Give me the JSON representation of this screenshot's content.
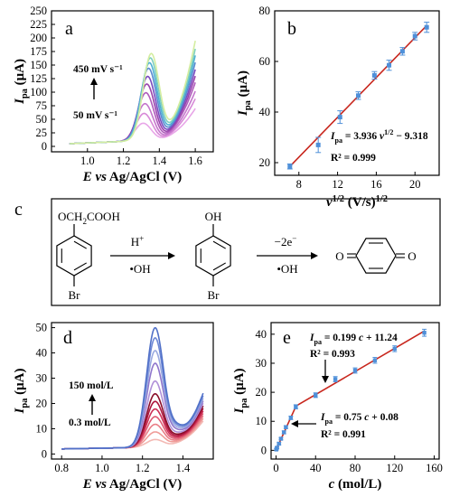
{
  "chart_data": [
    {
      "panel": "a",
      "type": "line",
      "xlabel": "E vs Ag/AgCl (V)",
      "ylabel": "Ipa (μA)",
      "xlim": [
        0.8,
        1.7
      ],
      "ylim": [
        -10,
        250
      ],
      "xticks": [
        "1.0",
        "1.2",
        "1.4",
        "1.6"
      ],
      "yticks": [
        "0",
        "25",
        "50",
        "75",
        "100",
        "125",
        "150",
        "175",
        "200",
        "225",
        "250"
      ],
      "annotations": {
        "top": "450 mV s⁻¹",
        "bottom": "50 mV s⁻¹"
      },
      "series": [
        {
          "color": "#e8a6e8",
          "peak": 42,
          "end": 100
        },
        {
          "color": "#d88ad8",
          "peak": 60,
          "end": 118
        },
        {
          "color": "#c476cc",
          "peak": 78,
          "end": 132
        },
        {
          "color": "#b05cbc",
          "peak": 98,
          "end": 148
        },
        {
          "color": "#9a44ac",
          "peak": 114,
          "end": 160
        },
        {
          "color": "#7a4cc0",
          "peak": 128,
          "end": 172
        },
        {
          "color": "#5a8ad0",
          "peak": 143,
          "end": 185
        },
        {
          "color": "#4eb0d4",
          "peak": 153,
          "end": 198
        },
        {
          "color": "#7ecfbd",
          "peak": 162,
          "end": 210
        },
        {
          "color": "#d4eda0",
          "peak": 170,
          "end": 225
        }
      ]
    },
    {
      "panel": "b",
      "type": "scatter",
      "xlabel": "v1/2 (V/s)1/2",
      "ylabel": "Ipa (μA)",
      "xlim": [
        5.5,
        22.5
      ],
      "ylim": [
        15,
        80
      ],
      "xticks": [
        "8",
        "12",
        "16",
        "20"
      ],
      "yticks": [
        "20",
        "40",
        "60",
        "80"
      ],
      "x": [
        7.07,
        10.0,
        12.25,
        14.14,
        15.81,
        17.32,
        18.71,
        20.0,
        21.21
      ],
      "y": [
        18.5,
        27.0,
        38.0,
        46.5,
        54.5,
        58.5,
        64.0,
        70.0,
        73.5
      ],
      "err": [
        1.0,
        3.0,
        2.5,
        1.5,
        1.5,
        2.0,
        1.5,
        1.5,
        2.0
      ],
      "fit": {
        "slope": 3.936,
        "intercept": -9.318
      },
      "equation": "Ipa = 3.936 v1/2 − 9.318",
      "r2": "R² = 0.999"
    },
    {
      "panel": "d",
      "type": "line",
      "xlabel": "E vs Ag/AgCl (V)",
      "ylabel": "Ipa (μA)",
      "xlim": [
        0.75,
        1.55
      ],
      "ylim": [
        -2,
        52
      ],
      "xticks": [
        "0.8",
        "1.0",
        "1.2",
        "1.4"
      ],
      "yticks": [
        "0",
        "10",
        "20",
        "30",
        "40",
        "50"
      ],
      "annotations": {
        "top": "150 mol/L",
        "bottom": "0.3 mol/L"
      },
      "series": [
        {
          "color": "#f3b9b4",
          "peak": 5,
          "end": 14
        },
        {
          "color": "#ef9c98",
          "peak": 8,
          "end": 15
        },
        {
          "color": "#e97e87",
          "peak": 11,
          "end": 16
        },
        {
          "color": "#de5a72",
          "peak": 14,
          "end": 17
        },
        {
          "color": "#cc2f55",
          "peak": 17,
          "end": 18
        },
        {
          "color": "#b0173e",
          "peak": 20,
          "end": 19
        },
        {
          "color": "#8a0e2a",
          "peak": 23,
          "end": 20
        },
        {
          "color": "#b090d8",
          "peak": 28,
          "end": 21
        },
        {
          "color": "#8f76cc",
          "peak": 35,
          "end": 22
        },
        {
          "color": "#9aaae0",
          "peak": 40,
          "end": 23
        },
        {
          "color": "#6e88d6",
          "peak": 45,
          "end": 24
        },
        {
          "color": "#5070c8",
          "peak": 49,
          "end": 25
        }
      ]
    },
    {
      "panel": "e",
      "type": "scatter",
      "xlabel": "c (mol/L)",
      "ylabel": "Ipa (μA)",
      "xlim": [
        -5,
        165
      ],
      "ylim": [
        -3,
        44
      ],
      "xticks": [
        "0",
        "40",
        "80",
        "120",
        "160"
      ],
      "yticks": [
        "0",
        "10",
        "20",
        "30",
        "40"
      ],
      "x": [
        0.3,
        1,
        3,
        5,
        8,
        10,
        15,
        20,
        40,
        60,
        80,
        100,
        120,
        150
      ],
      "y": [
        0.3,
        0.9,
        2.3,
        4.0,
        6.2,
        8.0,
        11.2,
        15.0,
        19.0,
        24.5,
        27.5,
        31.0,
        35.0,
        40.5
      ],
      "err": [
        0.3,
        0.3,
        0.4,
        0.4,
        0.5,
        0.5,
        0.6,
        0.7,
        0.8,
        0.9,
        0.9,
        1.0,
        1.0,
        1.2
      ],
      "fit_high": {
        "slope": 0.199,
        "intercept": 11.24,
        "from": 20,
        "to": 150,
        "equation": "Ipa = 0.199 c + 11.24",
        "r2": "R² = 0.993"
      },
      "fit_low": {
        "slope": 0.75,
        "intercept": 0.08,
        "from": 0,
        "to": 20,
        "equation": "Ipa = 0.75 c + 0.08",
        "r2": "R² = 0.991"
      }
    }
  ],
  "scheme": {
    "panel": "c",
    "reactant_top": "OCH2COOH",
    "reactant_bottom": "Br",
    "arrow1_top": "H+",
    "arrow1_bottom": "•OH",
    "intermediate_top": "OH",
    "intermediate_bottom": "Br",
    "arrow2_top": "−2e−",
    "arrow2_bottom": "•OH",
    "product_left": "O",
    "product_right": "O"
  }
}
